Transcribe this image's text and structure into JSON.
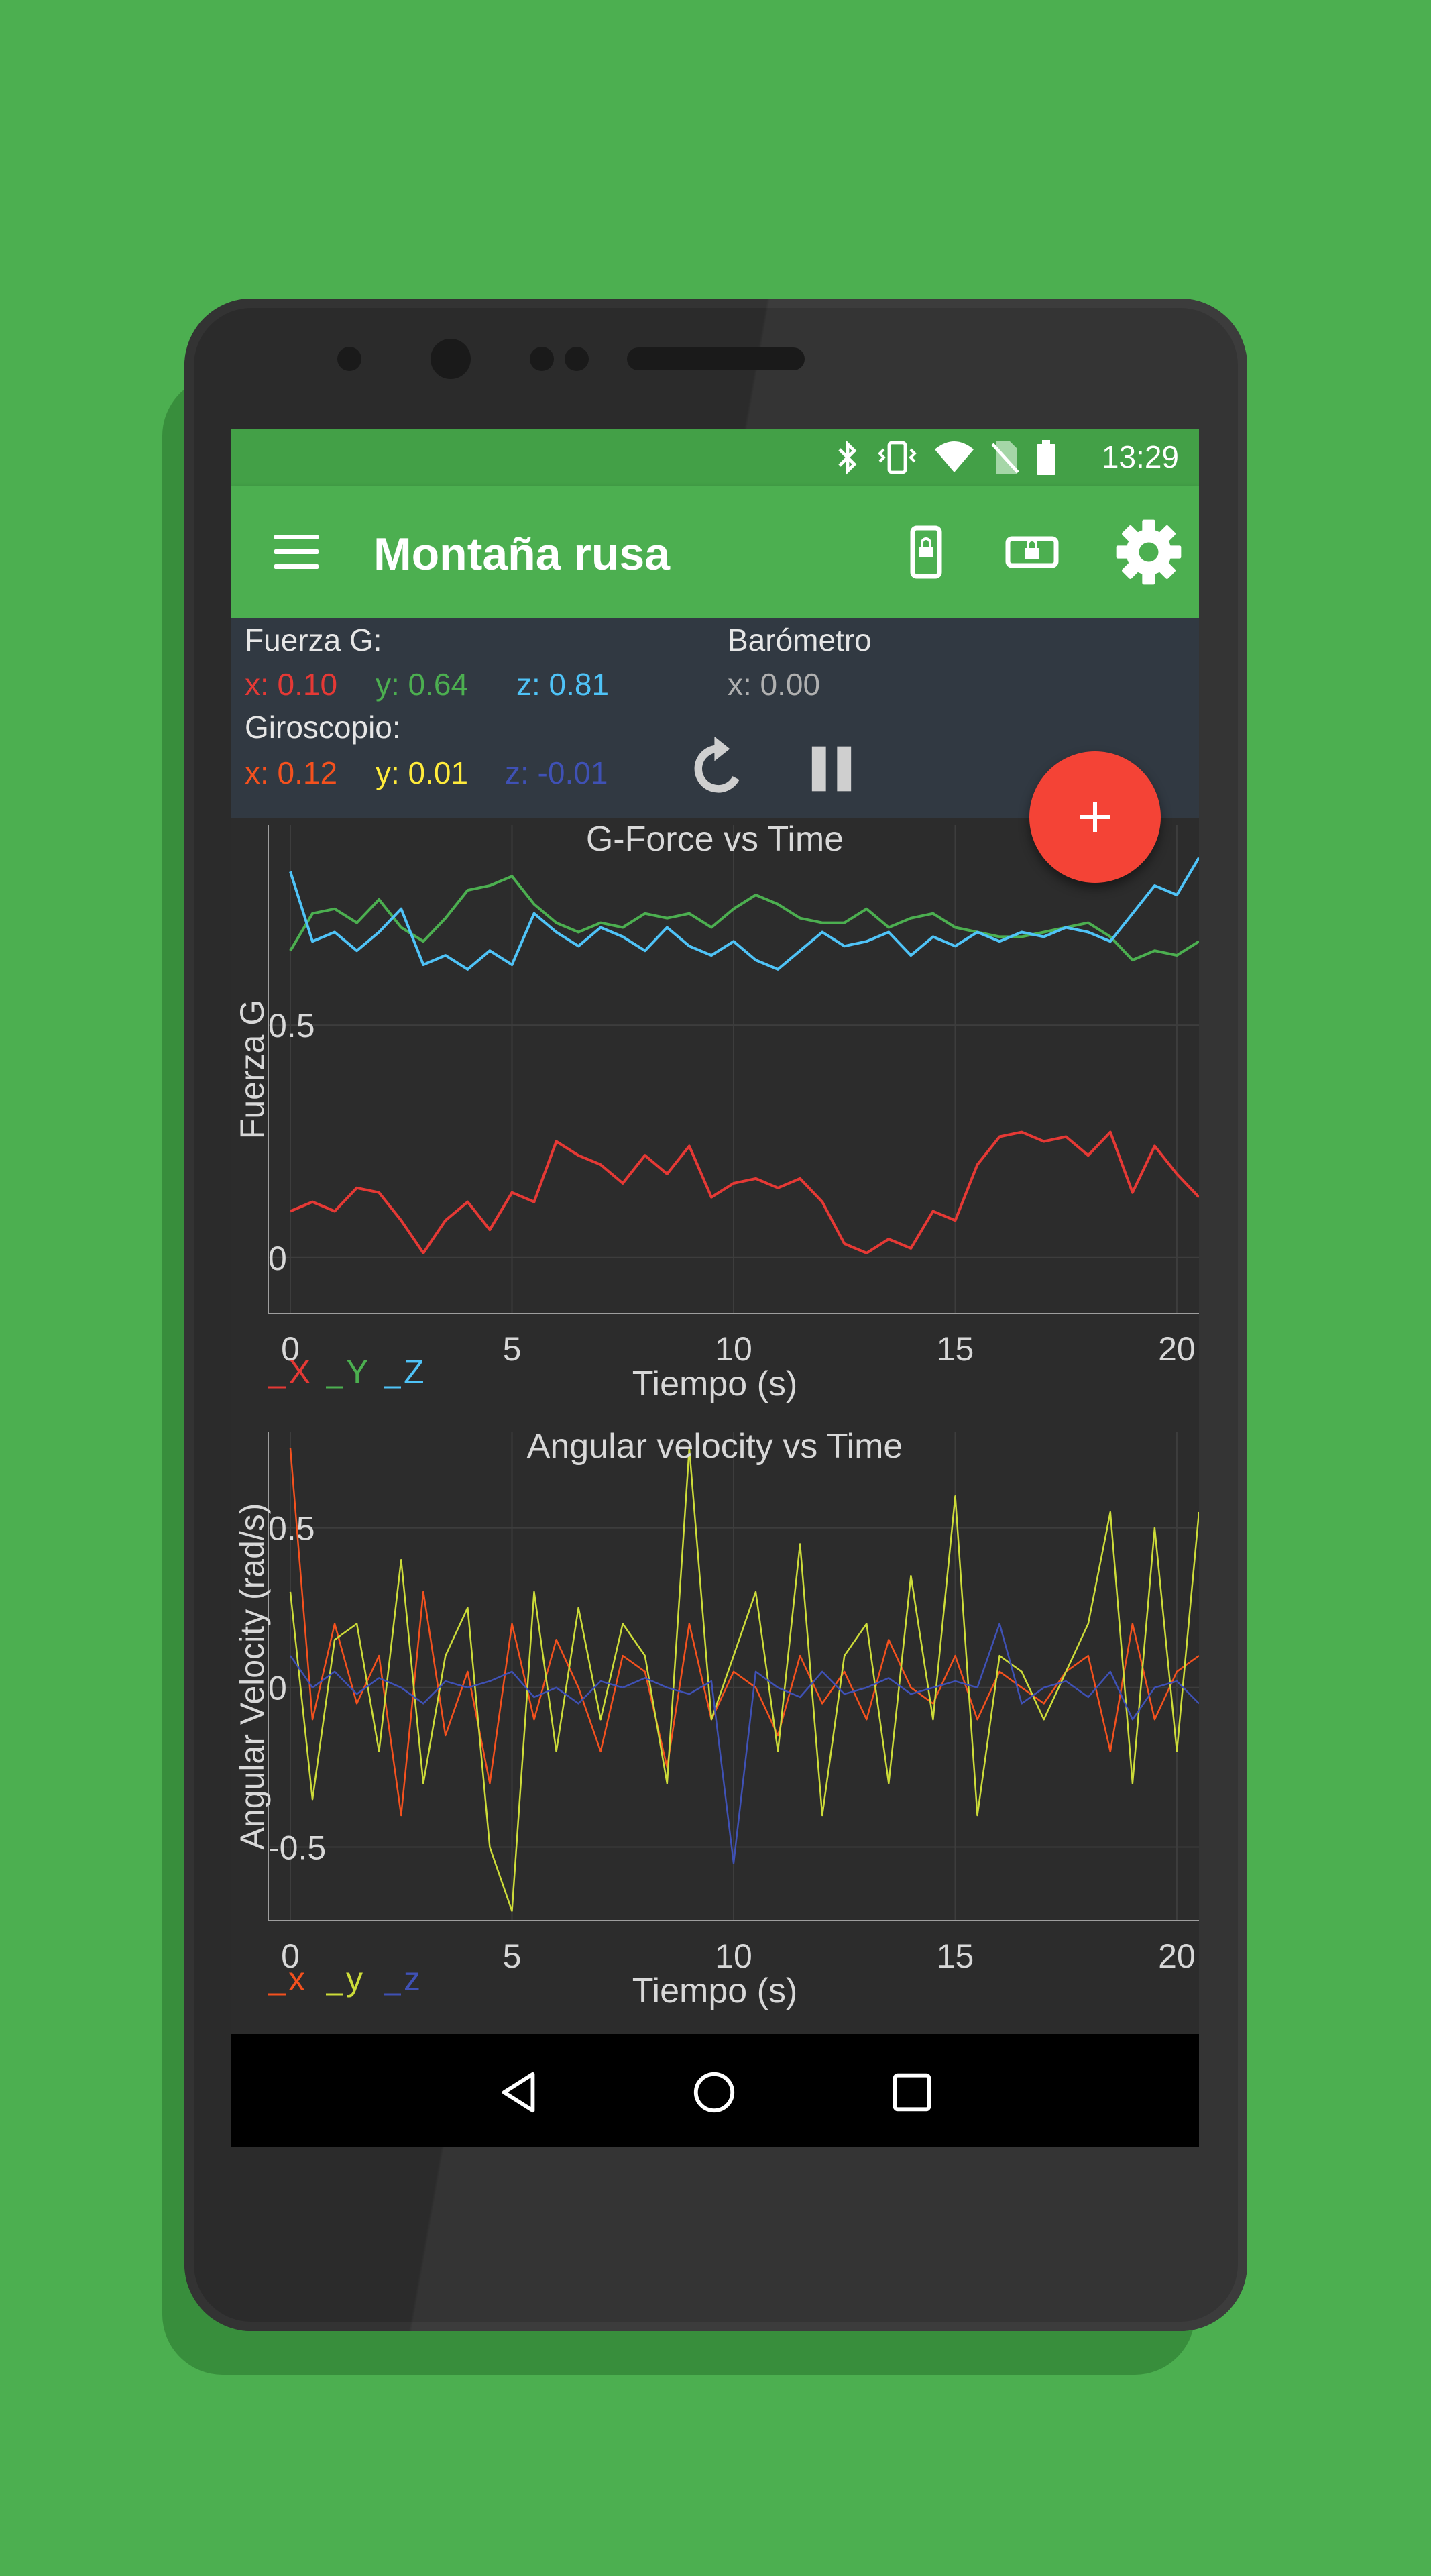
{
  "status_bar": {
    "time": "13:29",
    "icons": [
      "bluetooth-icon",
      "vibrate-icon",
      "wifi-icon",
      "no-sim-icon",
      "battery-icon"
    ]
  },
  "toolbar": {
    "title": "Montaña rusa",
    "actions": [
      "portrait-lock-icon",
      "landscape-lock-icon",
      "settings-gear-icon"
    ]
  },
  "sensors": {
    "gforce": {
      "label": "Fuerza G:",
      "x": "x: 0.10",
      "y": "y: 0.64",
      "z": "z: 0.81"
    },
    "barometer": {
      "label": "Barómetro",
      "x": "x: 0.00"
    },
    "gyroscope": {
      "label": "Giroscopio:",
      "x": "x: 0.12",
      "y": "y: 0.01",
      "z": "z: -0.01"
    }
  },
  "controls": [
    "reset-icon",
    "pause-icon"
  ],
  "fab": {
    "icon": "plus-icon"
  },
  "colors": {
    "gforce_x": "#e53935",
    "gforce_y": "#4caf50",
    "gforce_z": "#4fc3f7",
    "gyro_x": "#f4511e",
    "gyro_y": "#cddc39",
    "gyro_z": "#3f51b5"
  },
  "chart_data": [
    {
      "type": "line",
      "title": "G-Force vs Time",
      "xlabel": "Tiempo (s)",
      "ylabel": "Fuerza G",
      "xlim": [
        0,
        20.5
      ],
      "ylim": [
        -0.12,
        0.93
      ],
      "x_ticks": [
        "0",
        "5",
        "10",
        "15",
        "20"
      ],
      "y_ticks": [
        "0",
        "0.5"
      ],
      "legend": [
        "X",
        "Y",
        "Z"
      ],
      "legend_position": "bottom-left",
      "grid": true,
      "x": [
        0,
        0.5,
        1,
        1.5,
        2,
        2.5,
        3,
        3.5,
        4,
        4.5,
        5,
        5.5,
        6,
        6.5,
        7,
        7.5,
        8,
        8.5,
        9,
        9.5,
        10,
        10.5,
        11,
        11.5,
        12,
        12.5,
        13,
        13.5,
        14,
        14.5,
        15,
        15.5,
        16,
        16.5,
        17,
        17.5,
        18,
        18.5,
        19,
        19.5,
        20,
        20.5
      ],
      "series": [
        {
          "name": "X",
          "values": [
            0.1,
            0.12,
            0.1,
            0.15,
            0.14,
            0.08,
            0.01,
            0.08,
            0.12,
            0.06,
            0.14,
            0.12,
            0.25,
            0.22,
            0.2,
            0.16,
            0.22,
            0.18,
            0.24,
            0.13,
            0.16,
            0.17,
            0.15,
            0.17,
            0.12,
            0.03,
            0.01,
            0.04,
            0.02,
            0.1,
            0.08,
            0.2,
            0.26,
            0.27,
            0.25,
            0.26,
            0.22,
            0.27,
            0.14,
            0.24,
            0.18,
            0.13
          ]
        },
        {
          "name": "Y",
          "values": [
            0.66,
            0.74,
            0.75,
            0.72,
            0.77,
            0.71,
            0.68,
            0.73,
            0.79,
            0.8,
            0.82,
            0.76,
            0.72,
            0.7,
            0.72,
            0.71,
            0.74,
            0.73,
            0.74,
            0.71,
            0.75,
            0.78,
            0.76,
            0.73,
            0.72,
            0.72,
            0.75,
            0.71,
            0.73,
            0.74,
            0.71,
            0.7,
            0.69,
            0.69,
            0.7,
            0.71,
            0.72,
            0.69,
            0.64,
            0.66,
            0.65,
            0.68
          ]
        },
        {
          "name": "Z",
          "values": [
            0.83,
            0.68,
            0.7,
            0.66,
            0.7,
            0.75,
            0.63,
            0.65,
            0.62,
            0.66,
            0.63,
            0.74,
            0.7,
            0.67,
            0.71,
            0.69,
            0.66,
            0.71,
            0.67,
            0.65,
            0.68,
            0.64,
            0.62,
            0.66,
            0.7,
            0.67,
            0.68,
            0.7,
            0.65,
            0.69,
            0.67,
            0.7,
            0.68,
            0.7,
            0.69,
            0.71,
            0.7,
            0.68,
            0.74,
            0.8,
            0.78,
            0.86
          ]
        }
      ]
    },
    {
      "type": "line",
      "title": "Angular velocity vs Time",
      "xlabel": "Tiempo (s)",
      "ylabel": "Angular Velocity (rad/s)",
      "xlim": [
        0,
        20.5
      ],
      "ylim": [
        -0.73,
        0.8
      ],
      "x_ticks": [
        "0",
        "5",
        "10",
        "15",
        "20"
      ],
      "y_ticks": [
        "-0.5",
        "0",
        "0.5"
      ],
      "legend": [
        "x",
        "y",
        "z"
      ],
      "legend_position": "bottom-left",
      "grid": true,
      "x": [
        0,
        0.5,
        1,
        1.5,
        2,
        2.5,
        3,
        3.5,
        4,
        4.5,
        5,
        5.5,
        6,
        6.5,
        7,
        7.5,
        8,
        8.5,
        9,
        9.5,
        10,
        10.5,
        11,
        11.5,
        12,
        12.5,
        13,
        13.5,
        14,
        14.5,
        15,
        15.5,
        16,
        16.5,
        17,
        17.5,
        18,
        18.5,
        19,
        19.5,
        20,
        20.5
      ],
      "series": [
        {
          "name": "x",
          "values": [
            0.75,
            -0.1,
            0.2,
            -0.05,
            0.1,
            -0.4,
            0.3,
            -0.15,
            0.05,
            -0.3,
            0.2,
            -0.1,
            0.15,
            0,
            -0.2,
            0.1,
            0.05,
            -0.25,
            0.2,
            -0.1,
            0.05,
            0,
            -0.15,
            0.1,
            -0.05,
            0.05,
            -0.1,
            0.15,
            0,
            -0.05,
            0.1,
            -0.1,
            0.05,
            0,
            -0.05,
            0.05,
            0.1,
            -0.2,
            0.2,
            -0.1,
            0.05,
            0.1
          ]
        },
        {
          "name": "y",
          "values": [
            0.3,
            -0.35,
            0.15,
            0.2,
            -0.2,
            0.4,
            -0.3,
            0.1,
            0.25,
            -0.5,
            -0.7,
            0.3,
            -0.2,
            0.25,
            -0.1,
            0.2,
            0.1,
            -0.3,
            0.75,
            -0.1,
            0.1,
            0.3,
            -0.2,
            0.45,
            -0.4,
            0.1,
            0.2,
            -0.3,
            0.35,
            -0.1,
            0.6,
            -0.4,
            0.1,
            0.05,
            -0.1,
            0.05,
            0.2,
            0.55,
            -0.3,
            0.5,
            -0.2,
            0.55
          ]
        },
        {
          "name": "z",
          "values": [
            0.1,
            0,
            0.05,
            -0.02,
            0.03,
            0,
            -0.05,
            0.02,
            0,
            0.02,
            0.05,
            -0.03,
            0,
            -0.05,
            0.02,
            0,
            0.03,
            0,
            -0.02,
            0.02,
            -0.55,
            0.05,
            0,
            -0.03,
            0.05,
            -0.02,
            0,
            0.03,
            -0.02,
            0,
            0.02,
            0,
            0.2,
            -0.05,
            0,
            0.02,
            -0.03,
            0.05,
            -0.1,
            0,
            0.02,
            -0.05
          ]
        }
      ]
    }
  ]
}
